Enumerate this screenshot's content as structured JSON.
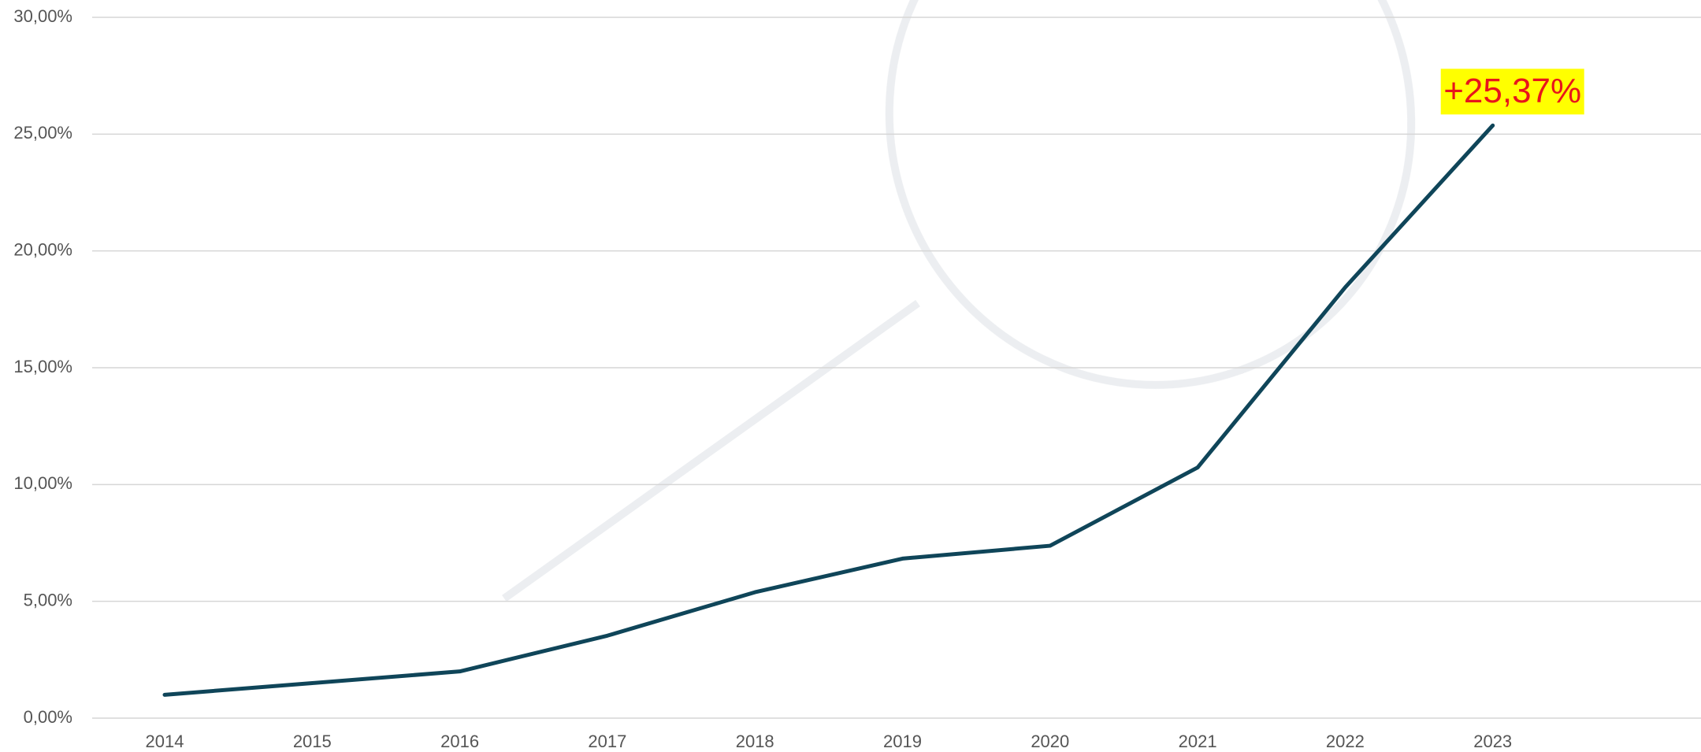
{
  "chart_data": {
    "type": "line",
    "categories": [
      "2014",
      "2015",
      "2016",
      "2017",
      "2018",
      "2019",
      "2020",
      "2021",
      "2022",
      "2023"
    ],
    "values": [
      1.0,
      1.5,
      2.0,
      3.53,
      5.39,
      6.83,
      7.38,
      10.73,
      18.44,
      25.37
    ],
    "value_labels": [
      null,
      null,
      null,
      null,
      null,
      null,
      null,
      null,
      null,
      "+25,37%"
    ],
    "color": "#0f4559",
    "ylim": [
      0,
      30
    ],
    "yticks": [
      {
        "value": 0,
        "label": "0,00%"
      },
      {
        "value": 5,
        "label": "5,00%"
      },
      {
        "value": 10,
        "label": "10,00%"
      },
      {
        "value": 15,
        "label": "15,00%"
      },
      {
        "value": 20,
        "label": "20,00%"
      },
      {
        "value": 25,
        "label": "25,00%"
      },
      {
        "value": 30,
        "label": "30,00%"
      }
    ],
    "grid": true
  }
}
